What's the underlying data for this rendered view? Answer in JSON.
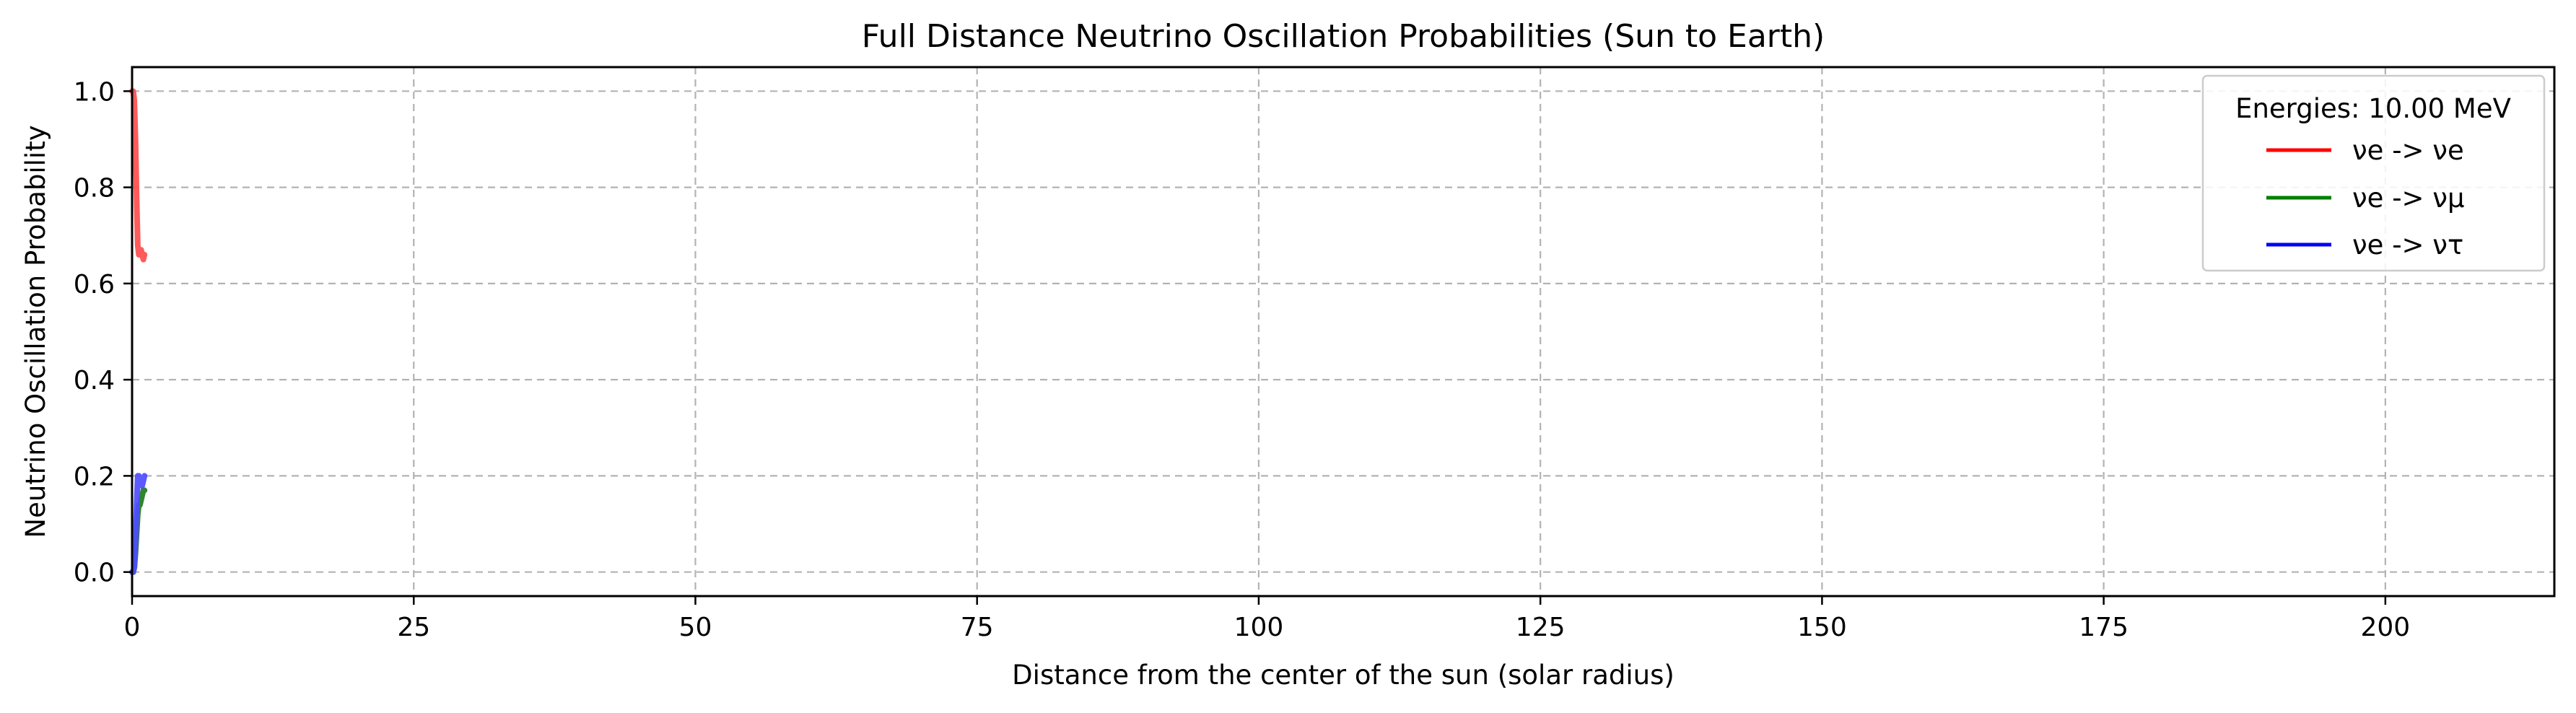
{
  "chart_data": {
    "type": "line",
    "title": "Full Distance Neutrino Oscillation Probabilities (Sun to Earth)",
    "xlabel": "Distance from the center of the sun (solar radius)",
    "ylabel": "Neutrino Oscillation Probability",
    "xlim": [
      0,
      215
    ],
    "ylim": [
      -0.05,
      1.05
    ],
    "x_ticks": [
      0,
      25,
      50,
      75,
      100,
      125,
      150,
      175,
      200
    ],
    "y_ticks": [
      0.0,
      0.2,
      0.4,
      0.6,
      0.8,
      1.0
    ],
    "x_tick_labels": [
      "0",
      "25",
      "50",
      "75",
      "100",
      "125",
      "150",
      "175",
      "200"
    ],
    "y_tick_labels": [
      "0.0",
      "0.2",
      "0.4",
      "0.6",
      "0.8",
      "1.0"
    ],
    "grid": true,
    "legend": {
      "title": "Energies: 10.00 MeV",
      "placement": "top-right",
      "entries": [
        {
          "label": "νe -> νe",
          "color": "#ff0000"
        },
        {
          "label": "νe -> νμ",
          "color": "#008000"
        },
        {
          "label": "νe -> ντ",
          "color": "#0000ff"
        }
      ]
    },
    "series": [
      {
        "name": "νe -> νe",
        "color": "#ff4d4d",
        "x": [
          0.0,
          0.1,
          0.2,
          0.3,
          0.4,
          0.5,
          0.6,
          0.7,
          0.8,
          0.9,
          1.0,
          1.1
        ],
        "y": [
          1.0,
          1.0,
          0.98,
          0.9,
          0.78,
          0.68,
          0.66,
          0.66,
          0.67,
          0.66,
          0.65,
          0.66
        ]
      },
      {
        "name": "νe -> νμ",
        "color": "#1f7a1f",
        "x": [
          0.0,
          0.1,
          0.2,
          0.3,
          0.4,
          0.5,
          0.6,
          0.7,
          0.8,
          0.9,
          1.0,
          1.1
        ],
        "y": [
          0.0,
          0.0,
          0.01,
          0.04,
          0.08,
          0.12,
          0.14,
          0.14,
          0.15,
          0.16,
          0.17,
          0.17
        ]
      },
      {
        "name": "νe -> ντ",
        "color": "#4d4dff",
        "x": [
          0.0,
          0.1,
          0.2,
          0.3,
          0.4,
          0.5,
          0.6,
          0.7,
          0.8,
          0.9,
          1.0,
          1.1
        ],
        "y": [
          0.0,
          0.0,
          0.01,
          0.06,
          0.14,
          0.2,
          0.2,
          0.19,
          0.18,
          0.18,
          0.19,
          0.2
        ]
      }
    ]
  }
}
